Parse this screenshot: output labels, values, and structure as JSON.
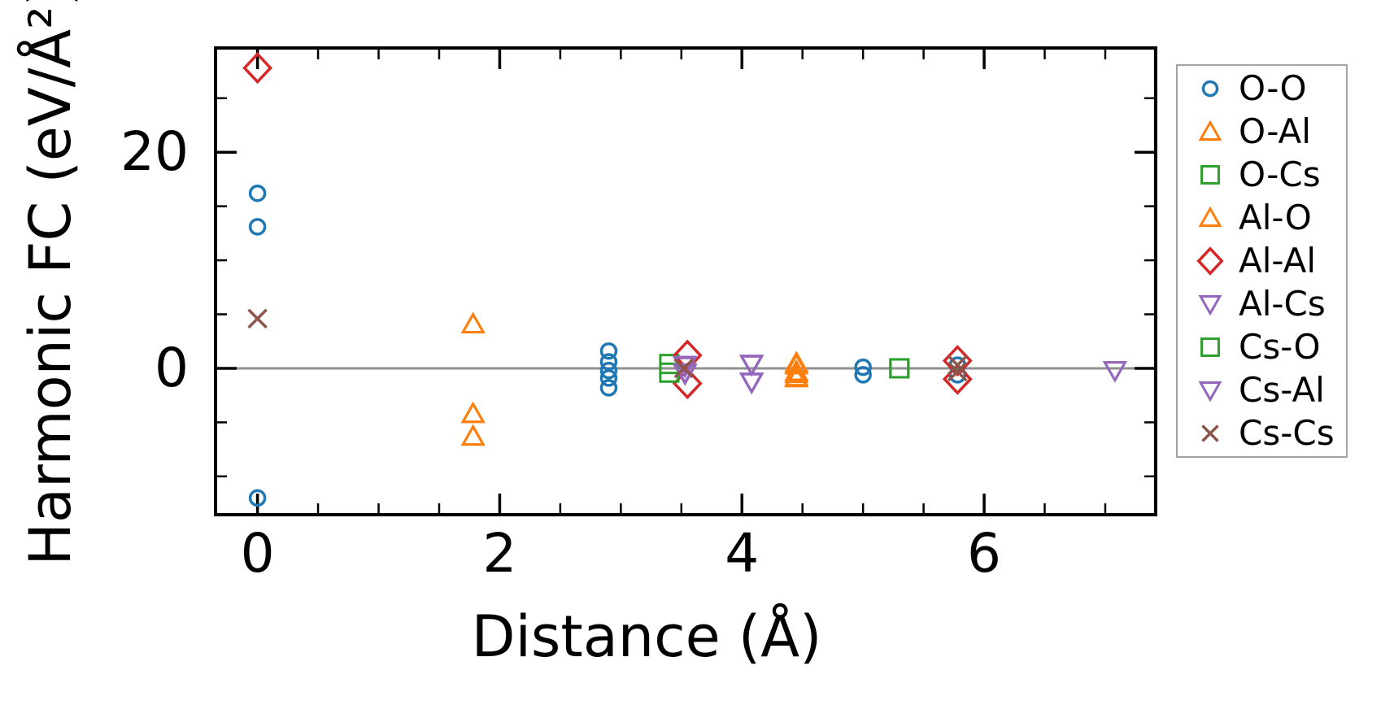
{
  "chart_data": {
    "type": "scatter",
    "title": "",
    "xlabel": "Distance (Å)",
    "ylabel": "Harmonic FC (eV/Å²)",
    "xlim": [
      -0.36,
      7.43
    ],
    "ylim": [
      -13.7,
      29.8
    ],
    "grid": false,
    "legend_position": "outside-right",
    "zero_line": {
      "y": 0,
      "color": "#909090"
    },
    "axis_color": "#000000",
    "xticks": {
      "major": [
        0,
        2,
        4,
        6
      ],
      "major_labels": [
        "0",
        "2",
        "4",
        "6"
      ],
      "minor": [
        0.5,
        1,
        1.5,
        2.5,
        3,
        3.5,
        4.5,
        5,
        5.5,
        6.5,
        7
      ]
    },
    "yticks": {
      "major": [
        0,
        20
      ],
      "major_labels": [
        "0",
        "20"
      ],
      "minor": [
        25,
        15,
        10,
        5,
        -5,
        -10
      ]
    },
    "series": [
      {
        "name": "O-O",
        "marker": "circle",
        "color": "#1f77b4",
        "points": [
          [
            0,
            16.2
          ],
          [
            0,
            13.1
          ],
          [
            0,
            -12.0
          ],
          [
            2.9,
            1.6
          ],
          [
            2.9,
            0.6
          ],
          [
            2.9,
            -0.2
          ],
          [
            2.9,
            -0.9
          ],
          [
            2.9,
            -1.8
          ],
          [
            5.0,
            0.1
          ],
          [
            5.0,
            -0.6
          ],
          [
            5.78,
            0.3
          ],
          [
            5.78,
            -0.6
          ]
        ]
      },
      {
        "name": "O-Al",
        "marker": "triangle-up",
        "color": "#ff7f0e",
        "points": [
          [
            1.78,
            4.1
          ],
          [
            1.78,
            -4.2
          ],
          [
            1.78,
            -6.3
          ],
          [
            4.45,
            0.5
          ],
          [
            4.45,
            -0.3
          ],
          [
            4.45,
            -0.8
          ]
        ]
      },
      {
        "name": "O-Cs",
        "marker": "square",
        "color": "#2ca02c",
        "points": [
          [
            3.4,
            0.4
          ],
          [
            5.3,
            0.0
          ]
        ]
      },
      {
        "name": "Al-O",
        "marker": "triangle-up",
        "color": "#ff7f0e",
        "points": [
          [
            1.78,
            4.1
          ],
          [
            1.78,
            -4.2
          ],
          [
            1.78,
            -6.3
          ],
          [
            4.45,
            0.3
          ],
          [
            4.45,
            -0.5
          ],
          [
            4.45,
            -0.9
          ]
        ]
      },
      {
        "name": "Al-Al",
        "marker": "diamond",
        "color": "#d62728",
        "points": [
          [
            0,
            27.8
          ],
          [
            3.55,
            1.2
          ],
          [
            3.55,
            -1.4
          ],
          [
            5.78,
            0.7
          ],
          [
            5.78,
            -1.0
          ]
        ]
      },
      {
        "name": "Al-Cs",
        "marker": "triangle-down",
        "color": "#9467bd",
        "points": [
          [
            3.53,
            0.3
          ],
          [
            3.53,
            -0.5
          ],
          [
            4.08,
            0.4
          ],
          [
            4.08,
            -1.3
          ],
          [
            7.08,
            -0.2
          ]
        ]
      },
      {
        "name": "Cs-O",
        "marker": "square",
        "color": "#2ca02c",
        "points": [
          [
            3.4,
            -0.4
          ],
          [
            5.3,
            0.0
          ]
        ]
      },
      {
        "name": "Cs-Al",
        "marker": "triangle-down",
        "color": "#9467bd",
        "points": [
          [
            3.53,
            0.2
          ],
          [
            3.53,
            -0.4
          ],
          [
            4.08,
            0.35
          ],
          [
            4.08,
            -1.25
          ],
          [
            7.08,
            -0.2
          ]
        ]
      },
      {
        "name": "Cs-Cs",
        "marker": "x",
        "color": "#8c564b",
        "points": [
          [
            0,
            4.6
          ],
          [
            3.52,
            0.0
          ],
          [
            5.78,
            0.3
          ],
          [
            5.78,
            -0.3
          ]
        ]
      }
    ]
  }
}
